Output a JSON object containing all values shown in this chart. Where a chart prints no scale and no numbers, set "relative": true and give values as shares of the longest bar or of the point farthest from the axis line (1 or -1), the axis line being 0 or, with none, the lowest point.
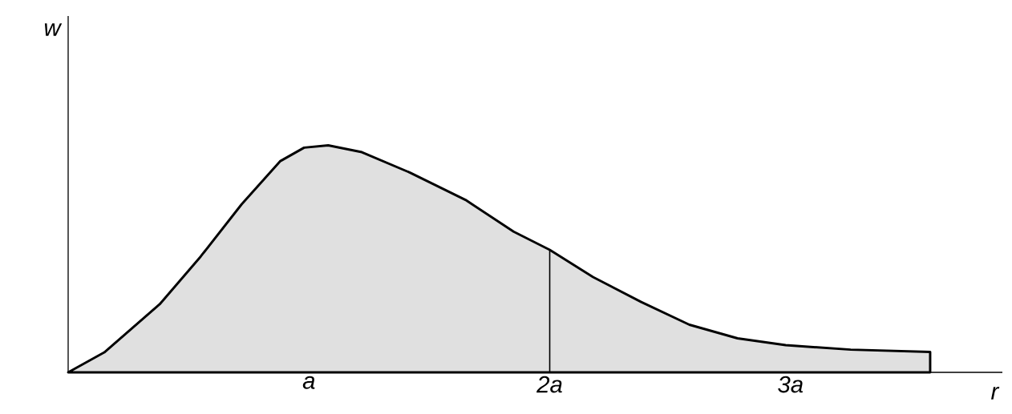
{
  "chart_data": {
    "type": "area",
    "relative": true,
    "xlabel": "r",
    "ylabel": "w",
    "xlim": [
      0,
      3.88
    ],
    "xticks": [
      {
        "value": 1,
        "label": "a"
      },
      {
        "value": 2,
        "label": "2a"
      },
      {
        "value": 3,
        "label": "3a"
      }
    ],
    "ref_lines": [
      {
        "axis": "x",
        "value": 2
      }
    ],
    "series": [
      {
        "color": "#000000",
        "x": [
          0,
          0.15,
          0.38,
          0.55,
          0.72,
          0.88,
          0.98,
          1.08,
          1.22,
          1.42,
          1.65,
          1.85,
          2.0,
          2.18,
          2.38,
          2.58,
          2.78,
          2.98,
          3.25,
          3.58
        ],
        "values": [
          0,
          0.088,
          0.3,
          0.51,
          0.74,
          0.93,
          0.99,
          1.0,
          0.97,
          0.88,
          0.76,
          0.62,
          0.54,
          0.42,
          0.31,
          0.21,
          0.15,
          0.12,
          0.1,
          0.09
        ]
      }
    ]
  }
}
